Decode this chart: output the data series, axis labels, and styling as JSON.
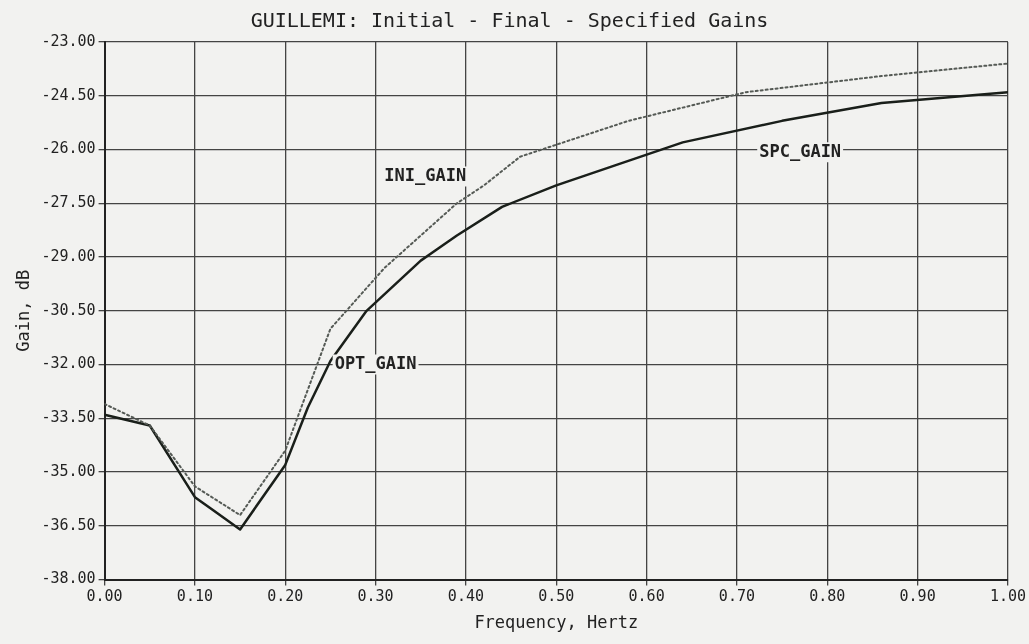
{
  "chart_data": {
    "type": "line",
    "title": "GUILLEMI: Initial - Final - Specified Gains",
    "xlabel": "Frequency, Hertz",
    "ylabel": "Gain, dB",
    "xlim": [
      0,
      1
    ],
    "xticks": [
      {
        "value": 0,
        "label": "0.00"
      },
      {
        "value": 0.1,
        "label": "0.10"
      },
      {
        "value": 0.2,
        "label": "0.20"
      },
      {
        "value": 0.3,
        "label": "0.30"
      },
      {
        "value": 0.4,
        "label": "0.40"
      },
      {
        "value": 0.5,
        "label": "0.50"
      },
      {
        "value": 0.6,
        "label": "0.60"
      },
      {
        "value": 0.7,
        "label": "0.70"
      },
      {
        "value": 0.8,
        "label": "0.80"
      },
      {
        "value": 0.9,
        "label": "0.90"
      },
      {
        "value": 1,
        "label": "1.00"
      }
    ],
    "ylim": [
      -38,
      -23
    ],
    "yticks": [
      {
        "value": -38,
        "label": "-38.00"
      },
      {
        "value": -36.5,
        "label": "-36.50"
      },
      {
        "value": -35,
        "label": "-35.00"
      },
      {
        "value": -33.5,
        "label": "-33.50"
      },
      {
        "value": -32,
        "label": "-32.00"
      },
      {
        "value": -30.5,
        "label": "-30.50"
      },
      {
        "value": -29,
        "label": "-29.00"
      },
      {
        "value": -27.5,
        "label": "-27.50"
      },
      {
        "value": -26,
        "label": "-26.00"
      },
      {
        "value": -24.5,
        "label": "-24.50"
      },
      {
        "value": -23,
        "label": "-23.00"
      }
    ],
    "grid": true,
    "legend": false,
    "marker": "none",
    "series": [
      {
        "name": "INI_GAIN",
        "color": "#555a55",
        "line_style": "dotted",
        "x": [
          0,
          0.05,
          0.1,
          0.15,
          0.2,
          0.25,
          0.31,
          0.39,
          0.42,
          0.46,
          0.58,
          0.71,
          0.86,
          1
        ],
        "values": [
          -33.1,
          -33.7,
          -35.4,
          -36.2,
          -34.4,
          -31,
          -29.3,
          -27.5,
          -27,
          -26.2,
          -25.2,
          -24.4,
          -23.95,
          -23.6
        ]
      },
      {
        "name": "OPT_GAIN",
        "color": "#1a1f1a",
        "line_style": "solid",
        "x": [
          0,
          0.05,
          0.1,
          0.15,
          0.2,
          0.225,
          0.25,
          0.29,
          0.35,
          0.39,
          0.44,
          0.5,
          0.64,
          0.75,
          0.86,
          1
        ],
        "values": [
          -33.4,
          -33.7,
          -35.7,
          -36.6,
          -34.8,
          -33.2,
          -31.9,
          -30.5,
          -29.1,
          -28.4,
          -27.6,
          -27,
          -25.8,
          -25.2,
          -24.7,
          -24.4
        ]
      }
    ],
    "annotations": [
      "SPC_GAIN"
    ]
  }
}
